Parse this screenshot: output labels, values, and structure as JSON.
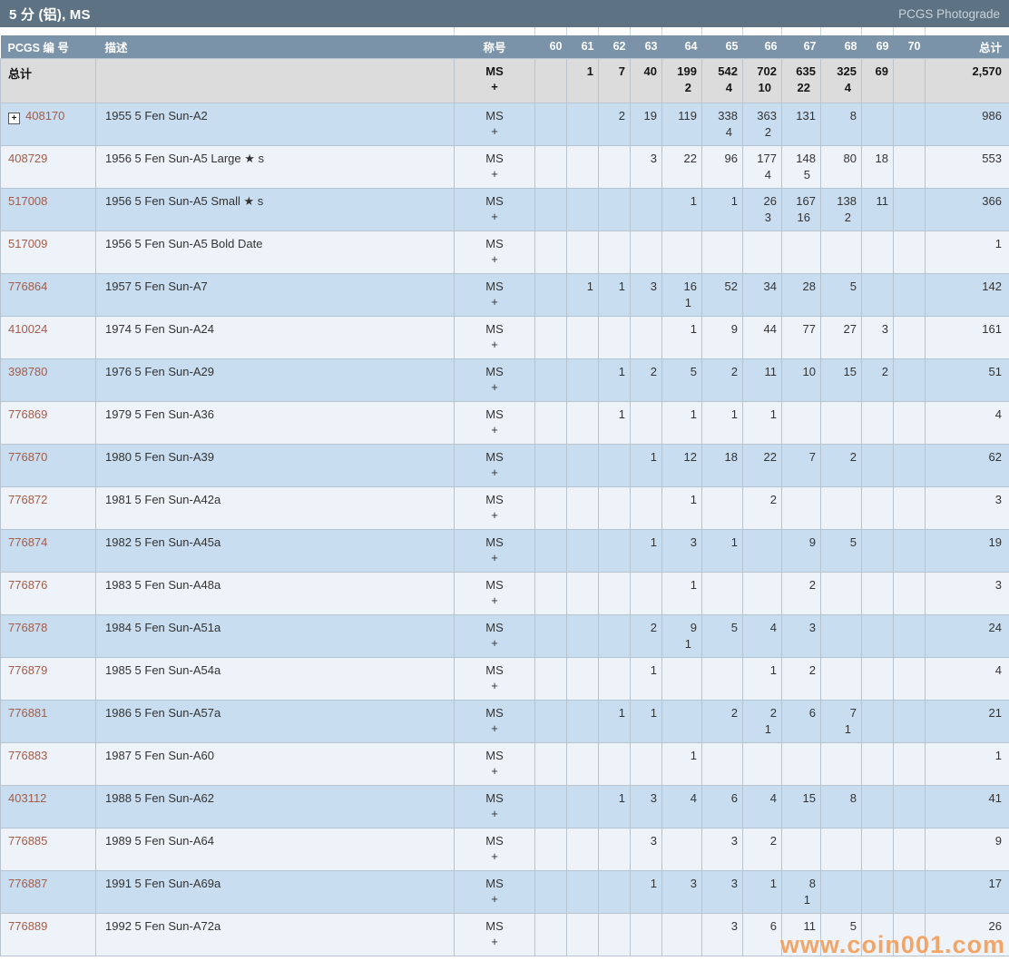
{
  "header": {
    "title": "5 分 (铝), MS",
    "link": "PCGS Photograde"
  },
  "icons": {
    "expand": "+"
  },
  "watermark": "www.coin001.com",
  "colors": {
    "titlebar_bg": "#5d7384",
    "column_header_bg": "#7b93a8",
    "totals_row_bg": "#dcdcdc",
    "row_blue": "#c9ddf0",
    "row_light": "#eef3f9",
    "pcgs_number": "#a25c49",
    "watermark": "#f0964e"
  },
  "table": {
    "columns": {
      "pcgs": "PCGS 编 号",
      "description": "描述",
      "designation": "称号",
      "grades": [
        "60",
        "61",
        "62",
        "63",
        "64",
        "65",
        "66",
        "67",
        "68",
        "69",
        "70"
      ],
      "total": "总计"
    },
    "designation": {
      "line1": "MS",
      "line2": "+"
    },
    "totals": {
      "label": "总计",
      "counts": [
        "",
        "1",
        "7",
        "40",
        "199|2",
        "542|4",
        "702|10",
        "635|22",
        "325|4",
        "69",
        ""
      ],
      "total": "2,570"
    },
    "rows": [
      {
        "pcgs": "408170",
        "expandable": true,
        "description": "1955 5 Fen Sun-A2",
        "counts": [
          "",
          "",
          "2",
          "19",
          "119",
          "338|4",
          "363|2",
          "131",
          "8",
          "",
          ""
        ],
        "total": "986"
      },
      {
        "pcgs": "408729",
        "expandable": false,
        "description": "1956 5 Fen Sun-A5 Large ★ s",
        "counts": [
          "",
          "",
          "",
          "3",
          "22",
          "96",
          "177|4",
          "148|5",
          "80",
          "18",
          ""
        ],
        "total": "553"
      },
      {
        "pcgs": "517008",
        "expandable": false,
        "description": "1956 5 Fen Sun-A5 Small ★ s",
        "counts": [
          "",
          "",
          "",
          "",
          "1",
          "1",
          "26|3",
          "167|16",
          "138|2",
          "11",
          ""
        ],
        "total": "366"
      },
      {
        "pcgs": "517009",
        "expandable": false,
        "description": "1956 5 Fen Sun-A5 Bold Date",
        "counts": [
          "",
          "",
          "",
          "",
          "",
          "",
          "",
          "",
          "",
          "",
          ""
        ],
        "total": "1"
      },
      {
        "pcgs": "776864",
        "expandable": false,
        "description": "1957 5 Fen Sun-A7",
        "counts": [
          "",
          "1",
          "1",
          "3",
          "16|1",
          "52",
          "34",
          "28",
          "5",
          "",
          ""
        ],
        "total": "142"
      },
      {
        "pcgs": "410024",
        "expandable": false,
        "description": "1974 5 Fen Sun-A24",
        "counts": [
          "",
          "",
          "",
          "",
          "1",
          "9",
          "44",
          "77",
          "27",
          "3",
          ""
        ],
        "total": "161"
      },
      {
        "pcgs": "398780",
        "expandable": false,
        "description": "1976 5 Fen Sun-A29",
        "counts": [
          "",
          "",
          "1",
          "2",
          "5",
          "2",
          "11",
          "10",
          "15",
          "2",
          ""
        ],
        "total": "51"
      },
      {
        "pcgs": "776869",
        "expandable": false,
        "description": "1979 5 Fen Sun-A36",
        "counts": [
          "",
          "",
          "1",
          "",
          "1",
          "1",
          "1",
          "",
          "",
          "",
          ""
        ],
        "total": "4"
      },
      {
        "pcgs": "776870",
        "expandable": false,
        "description": "1980 5 Fen Sun-A39",
        "counts": [
          "",
          "",
          "",
          "1",
          "12",
          "18",
          "22",
          "7",
          "2",
          "",
          ""
        ],
        "total": "62"
      },
      {
        "pcgs": "776872",
        "expandable": false,
        "description": "1981 5 Fen Sun-A42a",
        "counts": [
          "",
          "",
          "",
          "",
          "1",
          "",
          "2",
          "",
          "",
          "",
          ""
        ],
        "total": "3"
      },
      {
        "pcgs": "776874",
        "expandable": false,
        "description": "1982 5 Fen Sun-A45a",
        "counts": [
          "",
          "",
          "",
          "1",
          "3",
          "1",
          "",
          "9",
          "5",
          "",
          ""
        ],
        "total": "19"
      },
      {
        "pcgs": "776876",
        "expandable": false,
        "description": "1983 5 Fen Sun-A48a",
        "counts": [
          "",
          "",
          "",
          "",
          "1",
          "",
          "",
          "2",
          "",
          "",
          ""
        ],
        "total": "3"
      },
      {
        "pcgs": "776878",
        "expandable": false,
        "description": "1984 5 Fen Sun-A51a",
        "counts": [
          "",
          "",
          "",
          "2",
          "9|1",
          "5",
          "4",
          "3",
          "",
          "",
          ""
        ],
        "total": "24"
      },
      {
        "pcgs": "776879",
        "expandable": false,
        "description": "1985 5 Fen Sun-A54a",
        "counts": [
          "",
          "",
          "",
          "1",
          "",
          "",
          "1",
          "2",
          "",
          "",
          ""
        ],
        "total": "4"
      },
      {
        "pcgs": "776881",
        "expandable": false,
        "description": "1986 5 Fen Sun-A57a",
        "counts": [
          "",
          "",
          "1",
          "1",
          "",
          "2",
          "2|1",
          "6",
          "7|1",
          "",
          ""
        ],
        "total": "21"
      },
      {
        "pcgs": "776883",
        "expandable": false,
        "description": "1987 5 Fen Sun-A60",
        "counts": [
          "",
          "",
          "",
          "",
          "1",
          "",
          "",
          "",
          "",
          "",
          ""
        ],
        "total": "1"
      },
      {
        "pcgs": "403112",
        "expandable": false,
        "description": "1988 5 Fen Sun-A62",
        "counts": [
          "",
          "",
          "1",
          "3",
          "4",
          "6",
          "4",
          "15",
          "8",
          "",
          ""
        ],
        "total": "41"
      },
      {
        "pcgs": "776885",
        "expandable": false,
        "description": "1989 5 Fen Sun-A64",
        "counts": [
          "",
          "",
          "",
          "3",
          "",
          "3",
          "2",
          "",
          "",
          "",
          ""
        ],
        "total": "9"
      },
      {
        "pcgs": "776887",
        "expandable": false,
        "description": "1991 5 Fen Sun-A69a",
        "counts": [
          "",
          "",
          "",
          "1",
          "3",
          "3",
          "1",
          "8|1",
          "",
          "",
          ""
        ],
        "total": "17"
      },
      {
        "pcgs": "776889",
        "expandable": false,
        "description": "1992 5 Fen Sun-A72a",
        "counts": [
          "",
          "",
          "",
          "",
          "",
          "3",
          "6",
          "11",
          "5",
          "",
          ""
        ],
        "total": "26"
      }
    ]
  }
}
